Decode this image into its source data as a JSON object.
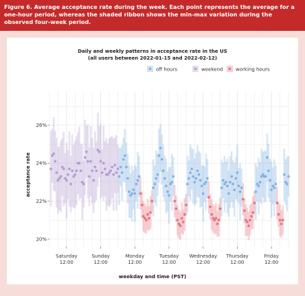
{
  "caption": "Figure 6. Average acceptance rate during the week. Each point represents the average for a one-hour period, whereas the shaded ribbon shows the min-max variation during the observed four-week period.",
  "colors": {
    "caption_bg": "#c42a2a",
    "page_bg": "#f6ddd9",
    "off_hours": "#7fb0e0",
    "weekend": "#b49ad0",
    "working_hours": "#e8707e"
  },
  "chart_data": {
    "type": "scatter",
    "title": "Daily and weekly patterns in acceptance rate in the US",
    "subtitle": "(all users between 2022-01-15 and 2022-02-12)",
    "xlabel": "weekday and time (PST)",
    "ylabel": "acceptance rate",
    "ylim": [
      0.196,
      0.278
    ],
    "yticks": [
      0.2,
      0.22,
      0.24,
      0.26
    ],
    "ytick_labels": [
      "20%",
      "22%",
      "24%",
      "26%"
    ],
    "xlim": [
      0,
      168
    ],
    "xticks": [
      12,
      36,
      60,
      84,
      108,
      132,
      156
    ],
    "xtick_labels": [
      [
        "Saturday",
        "12:00"
      ],
      [
        "Sunday",
        "12:00"
      ],
      [
        "Monday",
        "12:00"
      ],
      [
        "Tuesday",
        "12:00"
      ],
      [
        "Wednesday",
        "12:00"
      ],
      [
        "Thursday",
        "12:00"
      ],
      [
        "Friday",
        "12:00"
      ]
    ],
    "grid": true,
    "legend_position": "top",
    "ribbon": "min-max variation",
    "series": [
      {
        "name": "off hours",
        "color": "#7fb0e0",
        "values": [
          [
            49,
            0.233
          ],
          [
            50,
            0.238
          ],
          [
            51,
            0.235
          ],
          [
            52,
            0.242
          ],
          [
            53,
            0.244
          ],
          [
            54,
            0.238
          ],
          [
            55,
            0.232
          ],
          [
            56,
            0.225
          ],
          [
            57,
            0.223
          ],
          [
            58,
            0.224
          ],
          [
            59,
            0.226
          ],
          [
            60,
            0.224
          ],
          [
            61,
            0.229
          ],
          [
            62,
            0.231
          ],
          [
            63,
            0.233
          ],
          [
            73,
            0.227
          ],
          [
            74,
            0.229
          ],
          [
            75,
            0.232
          ],
          [
            76,
            0.234
          ],
          [
            77,
            0.244
          ],
          [
            78,
            0.248
          ],
          [
            79,
            0.242
          ],
          [
            80,
            0.236
          ],
          [
            81,
            0.232
          ],
          [
            82,
            0.228
          ],
          [
            83,
            0.225
          ],
          [
            84,
            0.223
          ],
          [
            85,
            0.229
          ],
          [
            86,
            0.23
          ],
          [
            87,
            0.233
          ],
          [
            97,
            0.229
          ],
          [
            98,
            0.232
          ],
          [
            99,
            0.235
          ],
          [
            100,
            0.237
          ],
          [
            101,
            0.233
          ],
          [
            102,
            0.23
          ],
          [
            103,
            0.232
          ],
          [
            104,
            0.236
          ],
          [
            105,
            0.234
          ],
          [
            106,
            0.231
          ],
          [
            107,
            0.228
          ],
          [
            108,
            0.224
          ],
          [
            109,
            0.229
          ],
          [
            110,
            0.23
          ],
          [
            111,
            0.232
          ],
          [
            121,
            0.227
          ],
          [
            122,
            0.231
          ],
          [
            123,
            0.229
          ],
          [
            124,
            0.23
          ],
          [
            125,
            0.228
          ],
          [
            126,
            0.224
          ],
          [
            127,
            0.23
          ],
          [
            128,
            0.233
          ],
          [
            129,
            0.229
          ],
          [
            130,
            0.226
          ],
          [
            131,
            0.232
          ],
          [
            132,
            0.235
          ],
          [
            133,
            0.228
          ],
          [
            134,
            0.225
          ],
          [
            135,
            0.227
          ],
          [
            145,
            0.225
          ],
          [
            146,
            0.229
          ],
          [
            147,
            0.228
          ],
          [
            148,
            0.23
          ],
          [
            149,
            0.233
          ],
          [
            150,
            0.234
          ],
          [
            151,
            0.233
          ],
          [
            152,
            0.233
          ],
          [
            153,
            0.243
          ],
          [
            154,
            0.236
          ],
          [
            155,
            0.231
          ],
          [
            156,
            0.226
          ],
          [
            157,
            0.228
          ],
          [
            158,
            0.227
          ],
          [
            159,
            0.229
          ],
          [
            165,
            0.234
          ],
          [
            166,
            0.23
          ],
          [
            167,
            0.229
          ],
          [
            168,
            0.233
          ]
        ]
      },
      {
        "name": "weekend",
        "color": "#b49ad0",
        "values": [
          [
            1,
            0.237
          ],
          [
            2,
            0.244
          ],
          [
            3,
            0.245
          ],
          [
            4,
            0.241
          ],
          [
            5,
            0.235
          ],
          [
            6,
            0.231
          ],
          [
            7,
            0.232
          ],
          [
            8,
            0.233
          ],
          [
            9,
            0.238
          ],
          [
            10,
            0.237
          ],
          [
            11,
            0.232
          ],
          [
            12,
            0.231
          ],
          [
            13,
            0.234
          ],
          [
            14,
            0.237
          ],
          [
            15,
            0.229
          ],
          [
            16,
            0.236
          ],
          [
            17,
            0.233
          ],
          [
            18,
            0.234
          ],
          [
            19,
            0.236
          ],
          [
            20,
            0.24
          ],
          [
            21,
            0.24
          ],
          [
            22,
            0.236
          ],
          [
            23,
            0.23
          ],
          [
            24,
            0.229
          ],
          [
            25,
            0.243
          ],
          [
            26,
            0.246
          ],
          [
            27,
            0.241
          ],
          [
            28,
            0.233
          ],
          [
            29,
            0.241
          ],
          [
            30,
            0.236
          ],
          [
            31,
            0.231
          ],
          [
            32,
            0.238
          ],
          [
            33,
            0.236
          ],
          [
            34,
            0.247
          ],
          [
            35,
            0.246
          ],
          [
            36,
            0.241
          ],
          [
            37,
            0.235
          ],
          [
            38,
            0.24
          ],
          [
            39,
            0.237
          ],
          [
            40,
            0.234
          ],
          [
            41,
            0.234
          ],
          [
            42,
            0.235
          ],
          [
            43,
            0.236
          ],
          [
            44,
            0.238
          ],
          [
            45,
            0.234
          ],
          [
            46,
            0.239
          ],
          [
            47,
            0.235
          ],
          [
            48,
            0.237
          ]
        ]
      },
      {
        "name": "working hours",
        "color": "#e8707e",
        "values": [
          [
            64,
            0.224
          ],
          [
            65,
            0.218
          ],
          [
            66,
            0.212
          ],
          [
            67,
            0.211
          ],
          [
            68,
            0.21
          ],
          [
            69,
            0.213
          ],
          [
            70,
            0.211
          ],
          [
            71,
            0.214
          ],
          [
            72,
            0.22
          ],
          [
            88,
            0.22
          ],
          [
            89,
            0.216
          ],
          [
            90,
            0.21
          ],
          [
            91,
            0.208
          ],
          [
            92,
            0.207
          ],
          [
            93,
            0.211
          ],
          [
            94,
            0.209
          ],
          [
            95,
            0.213
          ],
          [
            96,
            0.218
          ],
          [
            112,
            0.222
          ],
          [
            113,
            0.217
          ],
          [
            114,
            0.213
          ],
          [
            115,
            0.211
          ],
          [
            116,
            0.21
          ],
          [
            117,
            0.211
          ],
          [
            118,
            0.208
          ],
          [
            119,
            0.21
          ],
          [
            120,
            0.216
          ],
          [
            136,
            0.221
          ],
          [
            137,
            0.215
          ],
          [
            138,
            0.21
          ],
          [
            139,
            0.209
          ],
          [
            140,
            0.207
          ],
          [
            141,
            0.21
          ],
          [
            142,
            0.212
          ],
          [
            143,
            0.214
          ],
          [
            144,
            0.219
          ],
          [
            160,
            0.219
          ],
          [
            161,
            0.213
          ],
          [
            162,
            0.21
          ],
          [
            163,
            0.208
          ],
          [
            164,
            0.21
          ]
        ]
      }
    ]
  }
}
